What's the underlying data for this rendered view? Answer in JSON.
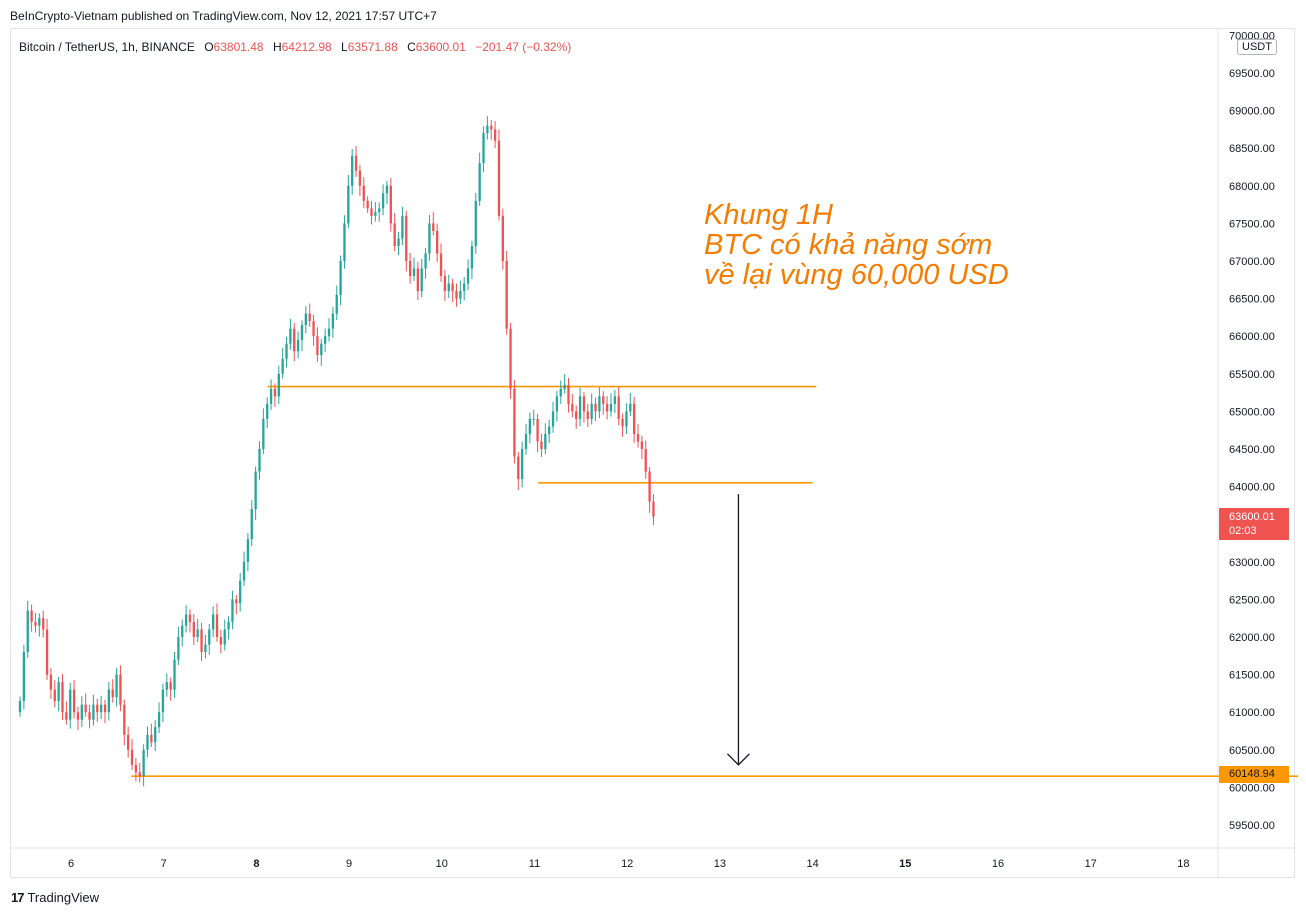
{
  "header": {
    "published": "BeInCrypto-Vietnam published on TradingView.com, Nov 12, 2021 17:57 UTC+7"
  },
  "legend": {
    "symbol": "Bitcoin / TetherUS, 1h, BINANCE",
    "o_label": "O",
    "o_value": "63801.48",
    "h_label": "H",
    "h_value": "64212.98",
    "l_label": "L",
    "l_value": "63571.88",
    "c_label": "C",
    "c_value": "63600.01",
    "change": "−201.47 (−0.32%)"
  },
  "currency_label": "USDT",
  "price_badge": {
    "price": "63600.01",
    "countdown": "02:03"
  },
  "level_badge": "60148.94",
  "annotation": {
    "line1": "Khung 1H",
    "line2": "BTC có khả năng sớm",
    "line3": "về lại vùng 60,000 USD"
  },
  "footer": {
    "logo": "17",
    "brand": "TradingView"
  },
  "colors": {
    "up": "#26a69a",
    "down": "#ef5350",
    "level": "#ff9800",
    "annotation": "#f57c00"
  },
  "chart_data": {
    "type": "candlestick",
    "title": "Bitcoin / TetherUS, 1h, BINANCE",
    "ylim": [
      59200,
      70000
    ],
    "y_ticks": [
      "59500.00",
      "60000.00",
      "60500.00",
      "61000.00",
      "61500.00",
      "62000.00",
      "62500.00",
      "63000.00",
      "63500.00",
      "64000.00",
      "64500.00",
      "65000.00",
      "65500.00",
      "66000.00",
      "66500.00",
      "67000.00",
      "67500.00",
      "68000.00",
      "68500.00",
      "69000.00",
      "69500.00",
      "70000.00"
    ],
    "x_ticks": [
      {
        "label": "6",
        "day": 6
      },
      {
        "label": "7",
        "day": 7
      },
      {
        "label": "8",
        "day": 8,
        "bold": true
      },
      {
        "label": "9",
        "day": 9
      },
      {
        "label": "10",
        "day": 10
      },
      {
        "label": "11",
        "day": 11
      },
      {
        "label": "12",
        "day": 12
      },
      {
        "label": "13",
        "day": 13
      },
      {
        "label": "14",
        "day": 14
      },
      {
        "label": "15",
        "day": 15,
        "bold": true
      },
      {
        "label": "16",
        "day": 16
      },
      {
        "label": "17",
        "day": 17
      },
      {
        "label": "18",
        "day": 18
      }
    ],
    "x_start_day": 5.45,
    "candle_hours": 1,
    "closes": [
      61150,
      61800,
      62350,
      62200,
      62150,
      62250,
      62100,
      61500,
      61300,
      61150,
      61400,
      61000,
      60900,
      61300,
      61000,
      60900,
      61100,
      61000,
      60900,
      61100,
      61000,
      61100,
      61000,
      61300,
      61200,
      61500,
      61100,
      60700,
      60500,
      60300,
      60200,
      60150,
      60500,
      60700,
      60600,
      60800,
      61000,
      61300,
      61400,
      61300,
      61700,
      62000,
      62150,
      62300,
      62200,
      62000,
      62100,
      61800,
      61900,
      62100,
      62300,
      62000,
      61900,
      62100,
      62200,
      62500,
      62450,
      62750,
      63000,
      63300,
      63700,
      64200,
      64500,
      64900,
      65100,
      65300,
      65200,
      65500,
      65700,
      65900,
      66100,
      65800,
      65950,
      66150,
      66300,
      66200,
      66000,
      65750,
      65900,
      66000,
      66100,
      66300,
      66550,
      67000,
      67500,
      68000,
      68400,
      68200,
      68000,
      67800,
      67700,
      67600,
      67650,
      67700,
      67900,
      68000,
      67500,
      67200,
      67300,
      67600,
      67000,
      66800,
      66900,
      66600,
      66900,
      67100,
      67500,
      67400,
      67100,
      66800,
      66600,
      66700,
      66600,
      66500,
      66600,
      66700,
      66900,
      67200,
      67800,
      68300,
      68700,
      68800,
      68750,
      68600,
      67600,
      67000,
      66100,
      65300,
      64400,
      64100,
      64500,
      64700,
      64900,
      64900,
      64600,
      64500,
      64700,
      64800,
      65000,
      65200,
      65300,
      65350,
      65100,
      65000,
      64900,
      65200,
      65000,
      64900,
      65100,
      65000,
      65200,
      65100,
      65000,
      65100,
      65200,
      64900,
      64800,
      65000,
      65100,
      64700,
      64600,
      64500,
      64200,
      63800,
      63600
    ],
    "support_lines": [
      {
        "price": 65330,
        "from_day": 8.12,
        "to_day": 14.04
      },
      {
        "price": 64050,
        "from_day": 11.04,
        "to_day": 14.0
      },
      {
        "price": 60148.94,
        "from_day": 6.65,
        "to_day": 19.3
      }
    ],
    "arrow": {
      "day": 13.2,
      "from_price": 63900,
      "to_price": 60300
    }
  }
}
